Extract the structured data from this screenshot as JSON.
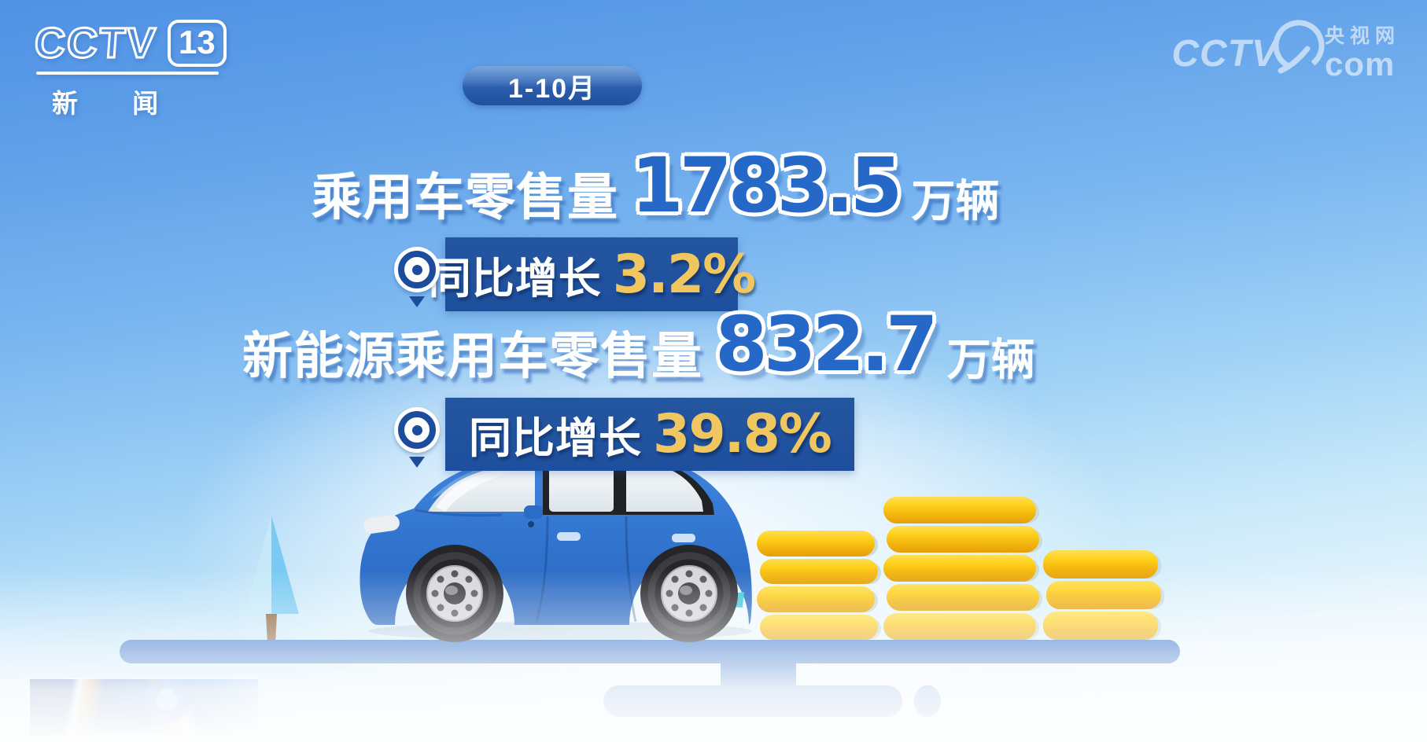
{
  "channel_logo": {
    "brand": "CCTV",
    "number": "13",
    "subtitle": "新 闻"
  },
  "watermark": {
    "brand": "CCTV",
    "site": "央视网",
    "domain": "com"
  },
  "badge": {
    "period": "1-10月"
  },
  "stats": [
    {
      "label": "乘用车零售量",
      "value": "1783.5",
      "unit": "万辆",
      "growth_label": "同比增长",
      "growth_value": "3.2%"
    },
    {
      "label": "新能源乘用车零售量",
      "value": "832.7",
      "unit": "万辆",
      "growth_label": "同比增长",
      "growth_value": "39.8%"
    }
  ],
  "illustration": {
    "coin_stacks": [
      {
        "coins": 4
      },
      {
        "coins": 5
      },
      {
        "coins": 3
      }
    ]
  },
  "colors": {
    "sky_top": "#4f92e4",
    "bar_blue": "#1e4f9e",
    "number_blue": "#2668c8",
    "gold_text": "#efc65f",
    "coin_gold": "#f6bc10",
    "road_blue": "#2d6dc6",
    "car_blue": "#2f74d0",
    "white": "#ffffff"
  },
  "chart_data": {
    "type": "table",
    "title": "1-10月",
    "categories": [
      "乘用车零售量",
      "新能源乘用车零售量"
    ],
    "series": [
      {
        "name": "零售量（万辆）",
        "values": [
          1783.5,
          832.7
        ]
      },
      {
        "name": "同比增长（%）",
        "values": [
          3.2,
          39.8
        ]
      }
    ]
  }
}
